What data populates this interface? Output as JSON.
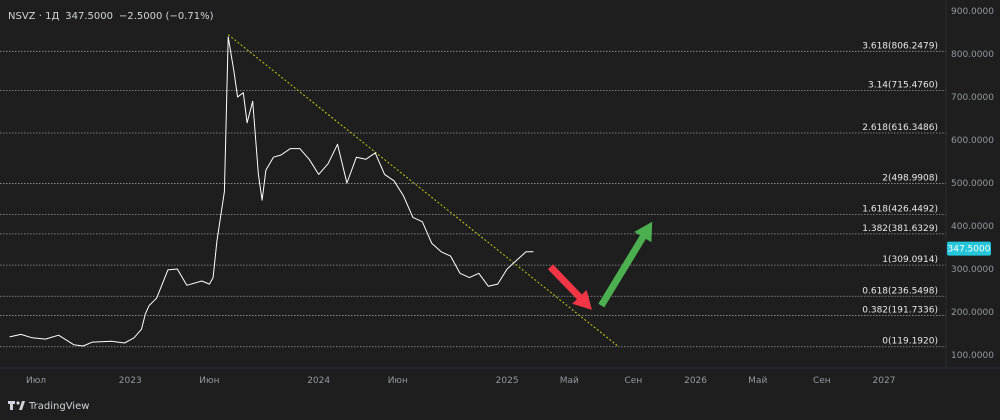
{
  "header": {
    "symbol": "NSVZ",
    "timeframe": "1Д",
    "last_price": "347.5000",
    "change": "−2.5000 (−0.71%)"
  },
  "branding": {
    "name": "TradingView"
  },
  "chart_data": {
    "type": "line",
    "title": "",
    "ylim": [
      100,
      900
    ],
    "y_ticks": [
      "100.0000",
      "200.0000",
      "300.0000",
      "400.0000",
      "500.0000",
      "600.0000",
      "700.0000",
      "800.0000",
      "900.0000"
    ],
    "x_tick_labels": [
      "Июл",
      "2023",
      "Июн",
      "2024",
      "Июн",
      "2025",
      "Май",
      "Сен",
      "2026",
      "Май",
      "Сен",
      "2027"
    ],
    "x_ticks": [
      {
        "label": "Июл",
        "t": 2022.5
      },
      {
        "label": "2023",
        "t": 2023.0
      },
      {
        "label": "Июн",
        "t": 2023.42
      },
      {
        "label": "2024",
        "t": 2024.0
      },
      {
        "label": "Июн",
        "t": 2024.42
      },
      {
        "label": "2025",
        "t": 2025.0
      },
      {
        "label": "Май",
        "t": 2025.33
      },
      {
        "label": "Сен",
        "t": 2025.67
      },
      {
        "label": "2026",
        "t": 2026.0
      },
      {
        "label": "Май",
        "t": 2026.33
      },
      {
        "label": "Сен",
        "t": 2026.67
      },
      {
        "label": "2027",
        "t": 2027.0
      }
    ],
    "current_price_label": "347.5000",
    "series": [
      {
        "values_t": [
          2022.36,
          2022.42,
          2022.48,
          2022.55,
          2022.62,
          2022.7,
          2022.75,
          2022.8,
          2022.9,
          2022.97,
          2023.02,
          2023.06,
          2023.08,
          2023.1,
          2023.14,
          2023.2,
          2023.25,
          2023.3,
          2023.38,
          2023.42,
          2023.44,
          2023.46,
          2023.5,
          2023.52,
          2023.55,
          2023.57,
          2023.6,
          2023.62,
          2023.65,
          2023.68,
          2023.7,
          2023.72,
          2023.76,
          2023.8,
          2023.85,
          2023.9,
          2023.95,
          2024.0,
          2024.05,
          2024.1,
          2024.15,
          2024.2,
          2024.25,
          2024.3,
          2024.35,
          2024.4,
          2024.45,
          2024.5,
          2024.55,
          2024.6,
          2024.65,
          2024.7,
          2024.75,
          2024.8,
          2024.85,
          2024.9,
          2024.95,
          2025.0,
          2025.05,
          2025.1,
          2025.14
        ],
        "values": [
          142,
          148,
          140,
          137,
          146,
          124,
          121,
          130,
          132,
          128,
          140,
          160,
          195,
          215,
          232,
          298,
          300,
          262,
          272,
          265,
          280,
          365,
          480,
          840,
          760,
          700,
          710,
          640,
          690,
          520,
          460,
          530,
          560,
          565,
          580,
          580,
          555,
          520,
          545,
          590,
          500,
          560,
          555,
          570,
          520,
          505,
          470,
          420,
          410,
          360,
          340,
          330,
          290,
          280,
          290,
          260,
          265,
          300,
          320,
          340,
          340
        ]
      }
    ],
    "fib_levels": [
      {
        "label": "3.618(806.2479)",
        "value": 806.2479
      },
      {
        "label": "3.14(715.4760)",
        "value": 715.476
      },
      {
        "label": "2.618(616.3486)",
        "value": 616.3486
      },
      {
        "label": "2(498.9908)",
        "value": 498.9908
      },
      {
        "label": "1.618(426.4492)",
        "value": 426.4492
      },
      {
        "label": "1.382(381.6329)",
        "value": 381.6329
      },
      {
        "label": "1(309.0914)",
        "value": 309.0914
      },
      {
        "label": "0.618(236.5498)",
        "value": 236.5498
      },
      {
        "label": "0.382(191.7336)",
        "value": 191.7336
      },
      {
        "label": "0(119.1920)",
        "value": 119.192
      }
    ],
    "trendline": [
      {
        "t": 2023.52,
        "value": 845
      },
      {
        "t": 2025.59,
        "value": 120
      }
    ],
    "arrows": [
      {
        "name": "down-arrow",
        "color": "#f23645",
        "from": {
          "t": 2025.23,
          "value": 305
        },
        "to": {
          "t": 2025.45,
          "value": 205
        }
      },
      {
        "name": "up-arrow",
        "color": "#4caf50",
        "from": {
          "t": 2025.5,
          "value": 215
        },
        "to": {
          "t": 2025.77,
          "value": 410
        }
      }
    ],
    "colors": {
      "background": "#1e1e1e",
      "price_line": "#ffffff",
      "fib_line": "#9a9a9a",
      "trendline": "#c9c914",
      "price_label_bg": "#26c6da",
      "axis_text": "#9598a1"
    }
  }
}
